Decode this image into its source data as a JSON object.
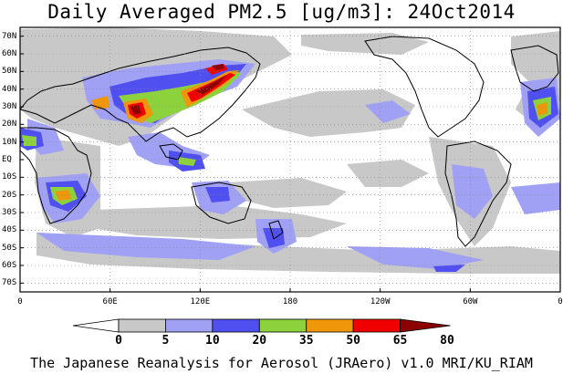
{
  "title": "Daily Averaged PM2.5 [ug/m3]: 24Oct2014",
  "credit": "The Japanese Reanalysis for Aerosol (JRAero) v1.0 MRI/KU_RIAM",
  "lat_labels": [
    "70N",
    "60N",
    "50N",
    "40N",
    "30N",
    "20N",
    "10N",
    "EQ",
    "10S",
    "20S",
    "30S",
    "40S",
    "50S",
    "60S",
    "70S"
  ],
  "lon_labels": [
    "0",
    "60E",
    "120E",
    "180",
    "120W",
    "60W",
    "0"
  ],
  "colorbar": {
    "ticks": [
      "0",
      "5",
      "10",
      "20",
      "35",
      "50",
      "65",
      "80"
    ],
    "colors": [
      "#ffffff",
      "#c8c8c8",
      "#a0a0f5",
      "#5050f0",
      "#8cd23c",
      "#f0960a",
      "#f00000",
      "#8c0000"
    ]
  },
  "legend_palette": {
    "white": "#ffffff",
    "gray": "#c8c8c8",
    "lavender": "#a0a0f5",
    "blue": "#5050f0",
    "green": "#8cd23c",
    "orange": "#f0960a",
    "red": "#f00000",
    "darkred": "#8c0000"
  }
}
